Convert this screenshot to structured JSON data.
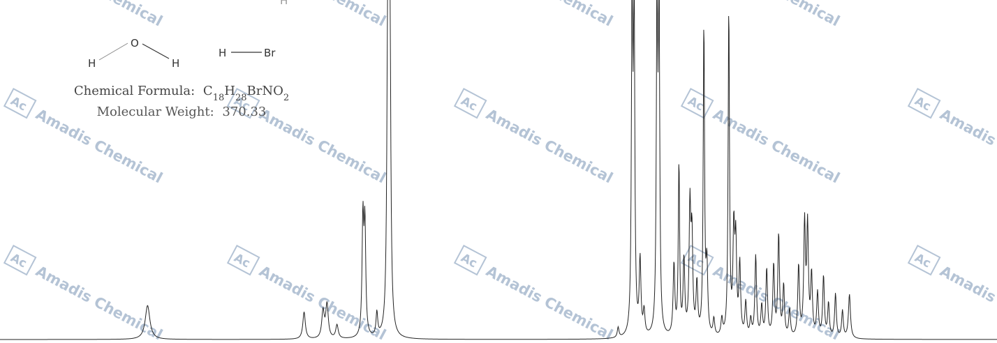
{
  "watermark": {
    "logo_text": "Ac",
    "text": "Amadis Chemical",
    "color": "#9bb0c8"
  },
  "structure": {
    "atoms": {
      "h_top": "H",
      "water_o": "O",
      "water_h1": "H",
      "water_h2": "H",
      "hbr_h": "H",
      "hbr_br": "Br"
    },
    "formula_label": "Chemical Formula:",
    "formula": [
      {
        "t": "C",
        "sub": false
      },
      {
        "t": "18",
        "sub": true
      },
      {
        "t": "H",
        "sub": false
      },
      {
        "t": "28",
        "sub": true
      },
      {
        "t": "BrNO",
        "sub": false
      },
      {
        "t": "2",
        "sub": true
      }
    ],
    "mw_label": "Molecular Weight:",
    "mw_value": "370.33"
  },
  "chart_data": {
    "type": "line",
    "title": "",
    "xlabel": "",
    "ylabel": "",
    "grid": false,
    "note": "1H NMR spectrum, no axis printed; peak positions in screen-relative fraction of spectrum width",
    "line_color": "#222222",
    "peaks": [
      {
        "x": 0.148,
        "h": 0.1,
        "w": 0.0028
      },
      {
        "x": 0.305,
        "h": 0.08,
        "w": 0.0015
      },
      {
        "x": 0.324,
        "h": 0.08,
        "w": 0.0015
      },
      {
        "x": 0.328,
        "h": 0.1,
        "w": 0.0015
      },
      {
        "x": 0.338,
        "h": 0.04,
        "w": 0.0015
      },
      {
        "x": 0.364,
        "h": 0.34,
        "w": 0.001
      },
      {
        "x": 0.366,
        "h": 0.32,
        "w": 0.001
      },
      {
        "x": 0.378,
        "h": 0.07,
        "w": 0.001
      },
      {
        "x": 0.389,
        "h": 1.0,
        "w": 0.001
      },
      {
        "x": 0.391,
        "h": 1.0,
        "w": 0.001
      },
      {
        "x": 0.62,
        "h": 0.03,
        "w": 0.001
      },
      {
        "x": 0.634,
        "h": 1.0,
        "w": 0.0008
      },
      {
        "x": 0.636,
        "h": 1.0,
        "w": 0.0008
      },
      {
        "x": 0.642,
        "h": 0.22,
        "w": 0.001
      },
      {
        "x": 0.646,
        "h": 0.07,
        "w": 0.001
      },
      {
        "x": 0.659,
        "h": 1.0,
        "w": 0.0008
      },
      {
        "x": 0.661,
        "h": 1.0,
        "w": 0.0008
      },
      {
        "x": 0.676,
        "h": 0.21,
        "w": 0.001
      },
      {
        "x": 0.681,
        "h": 0.51,
        "w": 0.0008
      },
      {
        "x": 0.686,
        "h": 0.22,
        "w": 0.001
      },
      {
        "x": 0.692,
        "h": 0.37,
        "w": 0.001
      },
      {
        "x": 0.694,
        "h": 0.28,
        "w": 0.001
      },
      {
        "x": 0.699,
        "h": 0.15,
        "w": 0.001
      },
      {
        "x": 0.706,
        "h": 0.92,
        "w": 0.0008
      },
      {
        "x": 0.709,
        "h": 0.2,
        "w": 0.001
      },
      {
        "x": 0.716,
        "h": 0.05,
        "w": 0.001
      },
      {
        "x": 0.724,
        "h": 0.05,
        "w": 0.001
      },
      {
        "x": 0.731,
        "h": 0.97,
        "w": 0.0008
      },
      {
        "x": 0.736,
        "h": 0.3,
        "w": 0.001
      },
      {
        "x": 0.738,
        "h": 0.26,
        "w": 0.001
      },
      {
        "x": 0.742,
        "h": 0.21,
        "w": 0.001
      },
      {
        "x": 0.748,
        "h": 0.1,
        "w": 0.001
      },
      {
        "x": 0.753,
        "h": 0.05,
        "w": 0.001
      },
      {
        "x": 0.758,
        "h": 0.24,
        "w": 0.001
      },
      {
        "x": 0.764,
        "h": 0.09,
        "w": 0.001
      },
      {
        "x": 0.769,
        "h": 0.2,
        "w": 0.001
      },
      {
        "x": 0.776,
        "h": 0.21,
        "w": 0.001
      },
      {
        "x": 0.781,
        "h": 0.3,
        "w": 0.001
      },
      {
        "x": 0.786,
        "h": 0.15,
        "w": 0.001
      },
      {
        "x": 0.792,
        "h": 0.08,
        "w": 0.001
      },
      {
        "x": 0.801,
        "h": 0.21,
        "w": 0.001
      },
      {
        "x": 0.807,
        "h": 0.33,
        "w": 0.001
      },
      {
        "x": 0.81,
        "h": 0.32,
        "w": 0.001
      },
      {
        "x": 0.814,
        "h": 0.18,
        "w": 0.001
      },
      {
        "x": 0.82,
        "h": 0.13,
        "w": 0.001
      },
      {
        "x": 0.826,
        "h": 0.18,
        "w": 0.001
      },
      {
        "x": 0.831,
        "h": 0.1,
        "w": 0.001
      },
      {
        "x": 0.838,
        "h": 0.13,
        "w": 0.001
      },
      {
        "x": 0.845,
        "h": 0.08,
        "w": 0.001
      },
      {
        "x": 0.852,
        "h": 0.13,
        "w": 0.0012
      }
    ]
  }
}
